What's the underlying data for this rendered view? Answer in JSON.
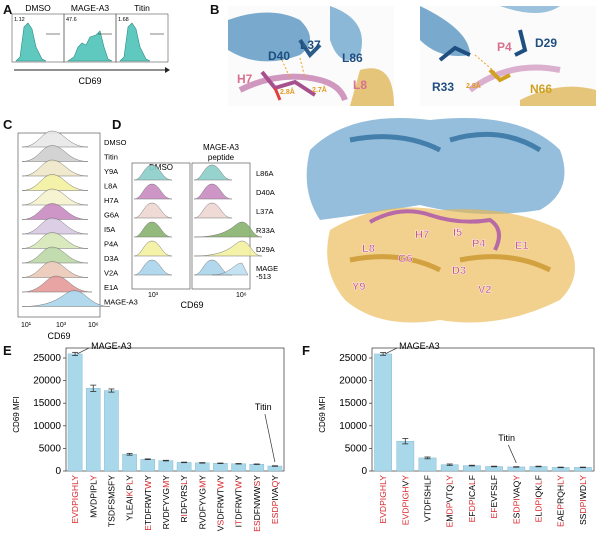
{
  "panels": {
    "A": {
      "label": "A",
      "samples": [
        {
          "name": "DMSO",
          "percent": "1.12"
        },
        {
          "name": "MAGE-A3",
          "percent": "47.6"
        },
        {
          "name": "Titin",
          "percent": "1.68"
        }
      ],
      "xlabel": "CD69"
    },
    "B": {
      "label": "B",
      "left_residues": [
        "L37",
        "D40",
        "L86",
        "H7",
        "L8"
      ],
      "left_distances": [
        "2.8Å",
        "2.7Å"
      ],
      "right_residues": [
        "P4",
        "D29",
        "R33",
        "N66"
      ],
      "right_distances": [
        "2.8Å"
      ],
      "structure_residues": [
        "E1",
        "V2",
        "D3",
        "P4",
        "I5",
        "G6",
        "H7",
        "L8",
        "Y9"
      ]
    },
    "C": {
      "label": "C",
      "rows": [
        "DMSO",
        "Titin",
        "Y9A",
        "L8A",
        "H7A",
        "G6A",
        "I5A",
        "P4A",
        "D3A",
        "V2A",
        "E1A",
        "MAGE-A3"
      ],
      "colors": [
        "#e8e8e8",
        "#cfcfcf",
        "#efe7c8",
        "#f3f0a0",
        "#f6f2cf",
        "#c98bc1",
        "#d9c9e3",
        "#d6e8b8",
        "#bcd9a7",
        "#ecc9b7",
        "#e69a9a",
        "#a9d4ea"
      ],
      "ticks": [
        "10¹",
        "10³",
        "10⁶"
      ],
      "xlabel": "CD69"
    },
    "D": {
      "label": "D",
      "col_headers": [
        "DMSO",
        "MAGE-A3\npeptide"
      ],
      "rows": [
        "L86A",
        "D40A",
        "L37A",
        "R33A",
        "D29A",
        "MAGE\n-513"
      ],
      "colors": [
        "#8ccfc9",
        "#c98bc1",
        "#eed6d2",
        "#88b26f",
        "#f3f0a0",
        "#a9d4ea"
      ],
      "ticks": [
        "10³",
        "10⁶"
      ],
      "xlabel": "CD69"
    },
    "E": {
      "label": "E",
      "annotations": [
        "MAGE-A3",
        "Titin"
      ]
    },
    "F": {
      "label": "F",
      "annotations": [
        "MAGE-A3",
        "Titin"
      ]
    }
  },
  "chart_data": [
    {
      "type": "bar",
      "panel": "E",
      "ylabel": "CD69 MFI",
      "ylim": [
        0,
        25000
      ],
      "yticks": [
        0,
        5000,
        10000,
        15000,
        20000,
        25000
      ],
      "categories": [
        "EVDPIGHLY",
        "MVDPIPLY",
        "TSDFSMSFY",
        "YLEAIKPLY",
        "ETDFRWTWY",
        "RVDFYVGMY",
        "RIDFVRSLY",
        "RVDFYVGMY",
        "VSDFRWTWY",
        "ITDFRWTWY",
        "ESDFNWWSY",
        "ESDPIVAQY"
      ],
      "highlight": [
        [
          1,
          2,
          3,
          4,
          5,
          6,
          7,
          8,
          9
        ],
        [
          8
        ],
        [],
        [
          6,
          8
        ],
        [
          1,
          8
        ],
        [
          8
        ],
        [
          2,
          8
        ],
        [
          8
        ],
        [
          2,
          8
        ],
        [
          2,
          8
        ],
        [
          1,
          2,
          8
        ],
        [
          1,
          2,
          3,
          4,
          8
        ]
      ],
      "values": [
        25900,
        18300,
        17800,
        3700,
        2600,
        2300,
        1900,
        1800,
        1700,
        1600,
        1500,
        1100
      ],
      "errors": [
        350,
        700,
        350,
        200,
        80,
        70,
        60,
        60,
        60,
        60,
        60,
        60
      ]
    },
    {
      "type": "bar",
      "panel": "F",
      "ylabel": "CD69 MFI",
      "ylim": [
        0,
        25000
      ],
      "yticks": [
        0,
        5000,
        10000,
        15000,
        20000,
        25000
      ],
      "categories": [
        "EVDPIGHLY",
        "EVDPIGHVY",
        "VTDFISHLF",
        "EMDPVTQLY",
        "EFDPICALF",
        "EFEVFSLF",
        "ESDPIVAQY",
        "ELDPIQKLF",
        "EAEPRQHLY",
        "SSDPIWDLY"
      ],
      "highlight": [
        [
          1,
          2,
          3,
          4,
          5,
          6,
          7,
          8,
          9
        ],
        [
          1,
          2,
          3,
          4,
          5,
          6,
          7,
          9
        ],
        [],
        [
          1,
          3,
          4,
          8,
          9
        ],
        [
          1,
          3,
          4,
          8
        ],
        [
          1,
          2
        ],
        [
          1,
          3,
          4,
          5,
          9
        ],
        [
          1,
          3,
          4,
          5,
          8
        ],
        [
          1,
          4,
          8,
          9
        ],
        [
          3,
          4,
          5,
          8,
          9
        ]
      ],
      "values": [
        25900,
        6600,
        2900,
        1400,
        1200,
        1000,
        900,
        1000,
        800,
        800
      ],
      "errors": [
        300,
        600,
        200,
        150,
        80,
        70,
        60,
        70,
        60,
        60
      ]
    }
  ]
}
